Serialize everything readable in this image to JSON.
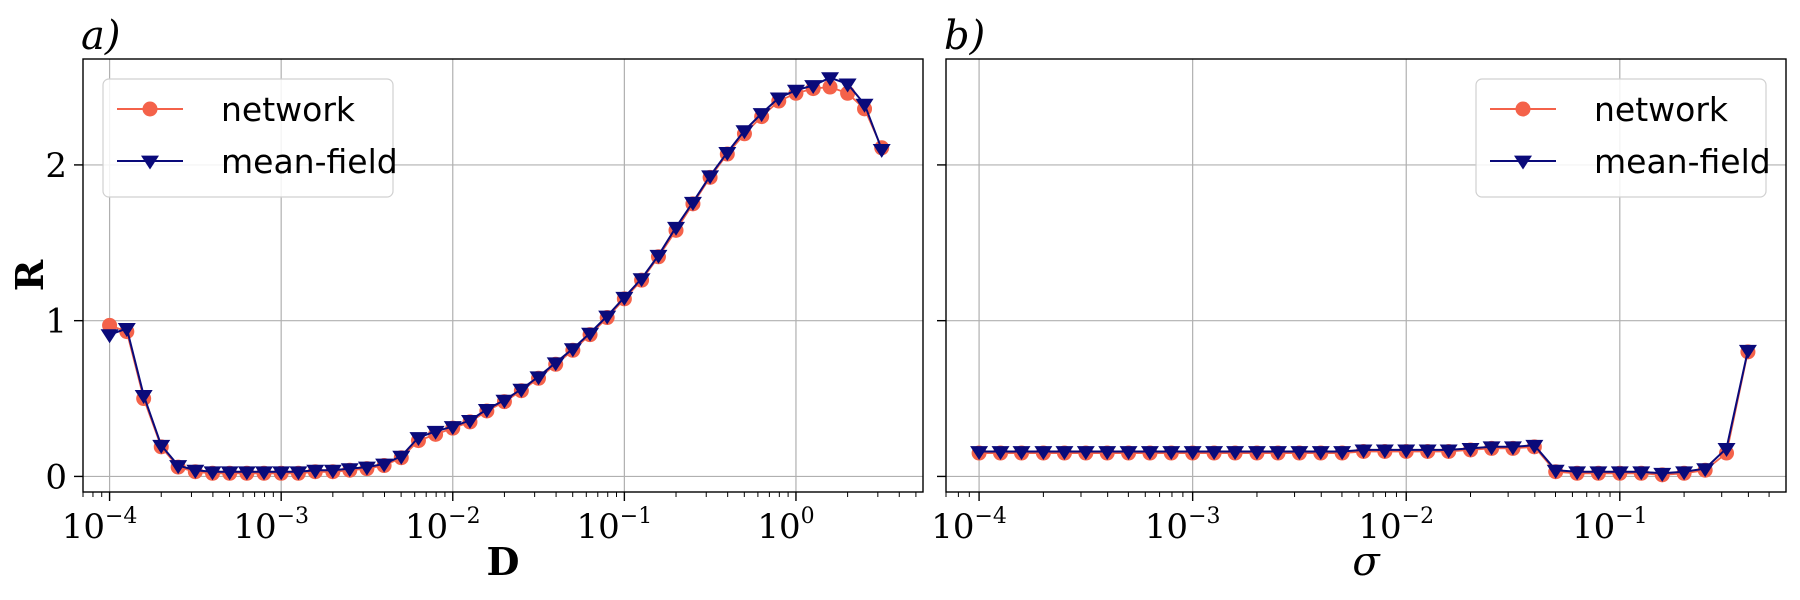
{
  "colors": {
    "network": "#f4624a",
    "meanfield": "#0a0a7a",
    "grid": "#b0b0b0"
  },
  "chart_data": [
    {
      "type": "line",
      "panel_label": "a)",
      "xlabel": "D",
      "ylabel": "R",
      "xscale": "log",
      "xlim": [
        7e-05,
        5.5
      ],
      "ylim": [
        -0.1,
        2.68
      ],
      "grid": true,
      "legend_position": "top-left",
      "x_ticks": [
        {
          "base": "10",
          "exp": "−4",
          "value": 0.0001
        },
        {
          "base": "10",
          "exp": "−3",
          "value": 0.001
        },
        {
          "base": "10",
          "exp": "−2",
          "value": 0.01
        },
        {
          "base": "10",
          "exp": "−1",
          "value": 0.1
        },
        {
          "base": "10",
          "exp": "0",
          "value": 1
        }
      ],
      "y_ticks": [
        {
          "label": "0",
          "value": 0
        },
        {
          "label": "1",
          "value": 1
        },
        {
          "label": "2",
          "value": 2
        }
      ],
      "series": [
        {
          "name": "network",
          "marker": "circle",
          "x": [
            0.0001,
            0.000126,
            0.000158,
            0.0002,
            0.000251,
            0.000316,
            0.000398,
            0.000501,
            0.000631,
            0.000794,
            0.001,
            0.00126,
            0.00158,
            0.002,
            0.00251,
            0.00316,
            0.00398,
            0.00501,
            0.00631,
            0.00794,
            0.01,
            0.0126,
            0.0158,
            0.02,
            0.0251,
            0.0316,
            0.0398,
            0.0501,
            0.0631,
            0.0794,
            0.1,
            0.126,
            0.158,
            0.2,
            0.251,
            0.316,
            0.398,
            0.501,
            0.631,
            0.794,
            1.0,
            1.26,
            1.58,
            2.0,
            2.51,
            3.16
          ],
          "y": [
            0.97,
            0.93,
            0.5,
            0.19,
            0.06,
            0.03,
            0.02,
            0.02,
            0.02,
            0.02,
            0.02,
            0.02,
            0.03,
            0.03,
            0.04,
            0.05,
            0.07,
            0.12,
            0.23,
            0.27,
            0.31,
            0.35,
            0.42,
            0.48,
            0.55,
            0.63,
            0.72,
            0.81,
            0.91,
            1.02,
            1.14,
            1.26,
            1.41,
            1.58,
            1.75,
            1.92,
            2.07,
            2.2,
            2.31,
            2.41,
            2.46,
            2.49,
            2.5,
            2.46,
            2.36,
            2.11
          ]
        },
        {
          "name": "mean-field",
          "marker": "triangle-down",
          "x": [
            0.0001,
            0.000126,
            0.000158,
            0.0002,
            0.000251,
            0.000316,
            0.000398,
            0.000501,
            0.000631,
            0.000794,
            0.001,
            0.00126,
            0.00158,
            0.002,
            0.00251,
            0.00316,
            0.00398,
            0.00501,
            0.00631,
            0.00794,
            0.01,
            0.0126,
            0.0158,
            0.02,
            0.0251,
            0.0316,
            0.0398,
            0.0501,
            0.0631,
            0.0794,
            0.1,
            0.126,
            0.158,
            0.2,
            0.251,
            0.316,
            0.398,
            0.501,
            0.631,
            0.794,
            1.0,
            1.26,
            1.58,
            2.0,
            2.51,
            3.16
          ],
          "y": [
            0.91,
            0.95,
            0.52,
            0.2,
            0.07,
            0.04,
            0.03,
            0.03,
            0.03,
            0.03,
            0.03,
            0.03,
            0.04,
            0.04,
            0.05,
            0.06,
            0.08,
            0.13,
            0.25,
            0.29,
            0.32,
            0.36,
            0.43,
            0.49,
            0.56,
            0.64,
            0.73,
            0.82,
            0.92,
            1.03,
            1.15,
            1.27,
            1.42,
            1.6,
            1.76,
            1.93,
            2.08,
            2.22,
            2.33,
            2.43,
            2.48,
            2.51,
            2.56,
            2.52,
            2.39,
            2.1
          ]
        }
      ]
    },
    {
      "type": "line",
      "panel_label": "b)",
      "xlabel": "σ",
      "ylabel": "",
      "xscale": "log",
      "xlim": [
        7e-05,
        0.6
      ],
      "ylim": [
        -0.1,
        2.68
      ],
      "grid": true,
      "legend_position": "top-right",
      "x_ticks": [
        {
          "base": "10",
          "exp": "−4",
          "value": 0.0001
        },
        {
          "base": "10",
          "exp": "−3",
          "value": 0.001
        },
        {
          "base": "10",
          "exp": "−2",
          "value": 0.01
        },
        {
          "base": "10",
          "exp": "−1",
          "value": 0.1
        }
      ],
      "y_ticks": [
        {
          "label": "",
          "value": 0
        },
        {
          "label": "",
          "value": 1
        },
        {
          "label": "",
          "value": 2
        }
      ],
      "series": [
        {
          "name": "network",
          "marker": "circle",
          "x": [
            0.0001,
            0.000126,
            0.000158,
            0.0002,
            0.000251,
            0.000316,
            0.000398,
            0.000501,
            0.000631,
            0.000794,
            0.001,
            0.00126,
            0.00158,
            0.002,
            0.00251,
            0.00316,
            0.00398,
            0.00501,
            0.00631,
            0.00794,
            0.01,
            0.0126,
            0.0158,
            0.02,
            0.0251,
            0.0316,
            0.0398,
            0.0501,
            0.0631,
            0.0794,
            0.1,
            0.126,
            0.158,
            0.2,
            0.251,
            0.316,
            0.398
          ],
          "y": [
            0.15,
            0.15,
            0.15,
            0.15,
            0.15,
            0.15,
            0.15,
            0.15,
            0.15,
            0.15,
            0.15,
            0.15,
            0.15,
            0.15,
            0.15,
            0.15,
            0.15,
            0.15,
            0.16,
            0.16,
            0.16,
            0.16,
            0.16,
            0.17,
            0.18,
            0.18,
            0.19,
            0.03,
            0.02,
            0.02,
            0.02,
            0.02,
            0.01,
            0.02,
            0.04,
            0.15,
            0.8
          ]
        },
        {
          "name": "mean-field",
          "marker": "triangle-down",
          "x": [
            0.0001,
            0.000126,
            0.000158,
            0.0002,
            0.000251,
            0.000316,
            0.000398,
            0.000501,
            0.000631,
            0.000794,
            0.001,
            0.00126,
            0.00158,
            0.002,
            0.00251,
            0.00316,
            0.00398,
            0.00501,
            0.00631,
            0.00794,
            0.01,
            0.0126,
            0.0158,
            0.02,
            0.0251,
            0.0316,
            0.0398,
            0.0501,
            0.0631,
            0.0794,
            0.1,
            0.126,
            0.158,
            0.2,
            0.251,
            0.316,
            0.398
          ],
          "y": [
            0.16,
            0.16,
            0.16,
            0.16,
            0.16,
            0.16,
            0.16,
            0.16,
            0.16,
            0.16,
            0.16,
            0.16,
            0.16,
            0.16,
            0.16,
            0.16,
            0.16,
            0.16,
            0.17,
            0.17,
            0.17,
            0.17,
            0.17,
            0.18,
            0.19,
            0.19,
            0.2,
            0.04,
            0.03,
            0.03,
            0.03,
            0.03,
            0.02,
            0.03,
            0.05,
            0.18,
            0.81
          ]
        }
      ]
    }
  ]
}
